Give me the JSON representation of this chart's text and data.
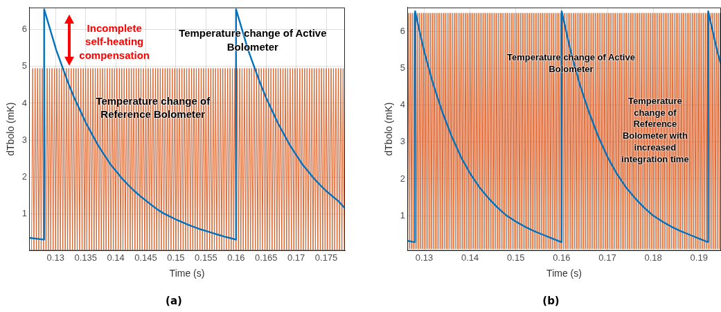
{
  "chart_data": [
    {
      "type": "line",
      "title": "(a)",
      "xlabel": "Time (s)",
      "ylabel": "dTbolo (mK)",
      "xlim": [
        0.1256,
        0.1781
      ],
      "xticks": [
        0.13,
        0.135,
        0.14,
        0.145,
        0.15,
        0.155,
        0.16,
        0.165,
        0.17,
        0.175
      ],
      "ylim": [
        0,
        6.6
      ],
      "yticks": [
        1,
        2,
        3,
        4,
        5,
        6
      ],
      "grid": true,
      "annotations": [
        "Incomplete self-heating compensation",
        "Temperature change of Active Bolometer",
        "Temperature change of Reference Bolometer"
      ],
      "series": [
        {
          "color": "#0072bd",
          "x": [
            0.1256,
            0.1281,
            0.1281,
            0.1291,
            0.1301,
            0.1311,
            0.1321,
            0.1331,
            0.1341,
            0.1351,
            0.1361,
            0.1371,
            0.1381,
            0.1391,
            0.1401,
            0.1411,
            0.1421,
            0.1431,
            0.1441,
            0.1451,
            0.1461,
            0.1471,
            0.1481,
            0.1491,
            0.1501,
            0.1511,
            0.1521,
            0.1531,
            0.1541,
            0.1551,
            0.1561,
            0.1571,
            0.1581,
            0.1591,
            0.16,
            0.16,
            0.161,
            0.162,
            0.163,
            0.164,
            0.165,
            0.166,
            0.167,
            0.168,
            0.169,
            0.17,
            0.171,
            0.172,
            0.173,
            0.174,
            0.175,
            0.176,
            0.177,
            0.1781
          ],
          "values": [
            0.35,
            0.3,
            6.55,
            6.0,
            5.45,
            5.0,
            4.55,
            4.15,
            3.8,
            3.45,
            3.15,
            2.85,
            2.6,
            2.35,
            2.15,
            1.95,
            1.78,
            1.62,
            1.48,
            1.35,
            1.22,
            1.1,
            1.0,
            0.92,
            0.84,
            0.77,
            0.7,
            0.64,
            0.58,
            0.53,
            0.48,
            0.43,
            0.38,
            0.34,
            0.3,
            6.55,
            6.0,
            5.45,
            5.0,
            4.55,
            4.15,
            3.8,
            3.45,
            3.15,
            2.85,
            2.6,
            2.35,
            2.15,
            1.95,
            1.78,
            1.62,
            1.48,
            1.35,
            1.15
          ]
        },
        {
          "color": "#d95319",
          "x": [
            0.126,
            0.1262,
            0.1264,
            0.1266,
            0.1268,
            0.127,
            0.1272,
            0.1274,
            0.1276,
            0.1278,
            0.128,
            0.1282,
            0.1284,
            0.1286,
            0.1288,
            0.129,
            0.1292,
            0.1294,
            0.1296,
            0.1298,
            0.13,
            0.1302,
            0.1304,
            0.1306,
            0.1308,
            0.131,
            0.1312,
            0.1314,
            0.1316,
            0.1318,
            0.132,
            0.1322,
            0.1324,
            0.1326,
            0.1328,
            0.133,
            0.1332,
            0.1334,
            0.1336,
            0.1338,
            0.134,
            0.1342,
            0.1344,
            0.1346,
            0.1348,
            0.135,
            0.1352,
            0.1354,
            0.1356,
            0.1358,
            0.136,
            0.1362,
            0.1364,
            0.1366,
            0.1368,
            0.137,
            0.1372,
            0.1374,
            0.1376,
            0.1378,
            0.138,
            0.1382,
            0.1384,
            0.1386,
            0.1388,
            0.139,
            0.1392,
            0.1394,
            0.1396,
            0.1398,
            0.14,
            0.1402,
            0.1404,
            0.1406,
            0.1408,
            0.141,
            0.1412,
            0.1414,
            0.1416,
            0.1418,
            0.142,
            0.1422,
            0.1424,
            0.1426,
            0.1428,
            0.143,
            0.1432,
            0.1434,
            0.1436,
            0.1438,
            0.144,
            0.1442,
            0.1444,
            0.1446,
            0.1448,
            0.145,
            0.1452,
            0.1454,
            0.1456,
            0.1458,
            0.146,
            0.1462,
            0.1464,
            0.1466,
            0.1468,
            0.147,
            0.1472,
            0.1474,
            0.1476,
            0.1478,
            0.148,
            0.1482,
            0.1484,
            0.1486,
            0.1488,
            0.149,
            0.1492,
            0.1494,
            0.1496,
            0.1498,
            0.15,
            0.1502,
            0.1504,
            0.1506,
            0.1508,
            0.151,
            0.1512,
            0.1514,
            0.1516,
            0.1518,
            0.152,
            0.1522,
            0.1524,
            0.1526,
            0.1528,
            0.153,
            0.1532,
            0.1534,
            0.1536,
            0.1538,
            0.154,
            0.1542,
            0.1544,
            0.1546,
            0.1548,
            0.155,
            0.1552,
            0.1554,
            0.1556,
            0.1558,
            0.156,
            0.1562,
            0.1564,
            0.1566,
            0.1568,
            0.157,
            0.1572,
            0.1574,
            0.1576,
            0.1578,
            0.158,
            0.1582,
            0.1584,
            0.1586,
            0.1588,
            0.159,
            0.1592,
            0.1594,
            0.1596,
            0.1598,
            0.16,
            0.1602,
            0.1604,
            0.1606,
            0.1608,
            0.161,
            0.1612,
            0.1614,
            0.1616,
            0.1618,
            0.162,
            0.1622,
            0.1624,
            0.1626,
            0.1628,
            0.163,
            0.1632,
            0.1634,
            0.1636,
            0.1638,
            0.164,
            0.1642,
            0.1644,
            0.1646,
            0.1648,
            0.165,
            0.1652,
            0.1654,
            0.1656,
            0.1658,
            0.166,
            0.1662,
            0.1664,
            0.1666,
            0.1668,
            0.167,
            0.1672,
            0.1674,
            0.1676,
            0.1678,
            0.168,
            0.1682,
            0.1684,
            0.1686,
            0.1688,
            0.169,
            0.1692,
            0.1694,
            0.1696,
            0.1698,
            0.17,
            0.1702,
            0.1704,
            0.1706,
            0.1708,
            0.171,
            0.1712,
            0.1714,
            0.1716,
            0.1718,
            0.172,
            0.1722,
            0.1724,
            0.1726,
            0.1728,
            0.173,
            0.1732,
            0.1734,
            0.1736,
            0.1738,
            0.174,
            0.1742,
            0.1744,
            0.1746,
            0.1748,
            0.175,
            0.1752,
            0.1754,
            0.1756,
            0.1758,
            0.176,
            0.1762,
            0.1764,
            0.1766,
            0.1768,
            0.177,
            0.1772,
            0.1774,
            0.1776,
            0.1778,
            0.178
          ],
          "values": [
            0.02,
            4.95,
            0.02,
            4.95,
            0.02,
            4.95,
            0.02,
            4.95,
            0.02,
            4.95,
            0.02,
            4.95,
            0.02,
            4.95,
            0.02,
            4.95,
            0.02,
            4.95,
            0.02,
            4.95,
            0.02,
            4.95,
            0.02,
            4.95,
            0.02,
            4.95,
            0.02,
            4.95,
            0.02,
            4.95,
            0.02,
            4.95,
            0.02,
            4.95,
            0.02,
            4.95,
            0.02,
            4.95,
            0.02,
            4.95,
            0.02,
            4.95,
            0.02,
            4.95,
            0.02,
            4.95,
            0.02,
            4.95,
            0.02,
            4.95,
            0.02,
            4.95,
            0.02,
            4.95,
            0.02,
            4.95,
            0.02,
            4.95,
            0.02,
            4.95,
            0.02,
            4.95,
            0.02,
            4.95,
            0.02,
            4.95,
            0.02,
            4.95,
            0.02,
            4.95,
            0.02,
            4.95,
            0.02,
            4.95,
            0.02,
            4.95,
            0.02,
            4.95,
            0.02,
            4.95,
            0.02,
            4.95,
            0.02,
            4.95,
            0.02,
            4.95,
            0.02,
            4.95,
            0.02,
            4.95,
            0.02,
            4.95,
            0.02,
            4.95,
            0.02,
            4.95,
            0.02,
            4.95,
            0.02,
            4.95,
            0.02,
            4.95,
            0.02,
            4.95,
            0.02,
            4.95,
            0.02,
            4.95,
            0.02,
            4.95,
            0.02,
            4.95,
            0.02,
            4.95,
            0.02,
            4.95,
            0.02,
            4.95,
            0.02,
            4.95,
            0.02,
            4.95,
            0.02,
            4.95,
            0.02,
            4.95,
            0.02,
            4.95,
            0.02,
            4.95,
            0.02,
            4.95,
            0.02,
            4.95,
            0.02,
            4.95,
            0.02,
            4.95,
            0.02,
            4.95,
            0.02,
            4.95,
            0.02,
            4.95,
            0.02,
            4.95,
            0.02,
            4.95,
            0.02,
            4.95,
            0.02,
            4.95,
            0.02,
            4.95,
            0.02,
            4.95,
            0.02,
            4.95,
            0.02,
            4.95,
            0.02,
            4.95,
            0.02,
            4.95,
            0.02,
            4.95,
            0.02,
            4.95,
            0.02,
            4.95,
            0.02,
            4.95,
            0.02,
            4.95,
            0.02,
            4.95,
            0.02,
            4.95,
            0.02,
            4.95,
            0.02,
            4.95,
            0.02,
            4.95,
            0.02,
            4.95,
            0.02,
            4.95,
            0.02,
            4.95,
            0.02,
            4.95,
            0.02,
            4.95,
            0.02,
            4.95,
            0.02,
            4.95,
            0.02,
            4.95,
            0.02,
            4.95,
            0.02,
            4.95,
            0.02,
            4.95,
            0.02,
            4.95,
            0.02,
            4.95,
            0.02,
            4.95,
            0.02,
            4.95,
            0.02,
            4.95,
            0.02,
            4.95,
            0.02,
            4.95,
            0.02,
            4.95,
            0.02,
            4.95,
            0.02,
            4.95,
            0.02,
            4.95,
            0.02,
            4.95,
            0.02,
            4.95,
            0.02,
            4.95,
            0.02,
            4.95,
            0.02,
            4.95,
            0.02,
            4.95,
            0.02,
            4.95,
            0.02,
            4.95,
            0.02,
            4.95,
            0.02,
            4.95,
            0.02,
            4.95,
            0.02,
            4.95,
            0.02,
            4.95,
            0.02,
            4.95,
            0.02,
            4.95,
            0.02,
            4.95,
            0.02
          ]
        }
      ]
    },
    {
      "type": "line",
      "title": "(b)",
      "xlabel": "Time (s)",
      "ylabel": "dTbolo (mK)",
      "xlim": [
        0.1263,
        0.1948
      ],
      "xticks": [
        0.13,
        0.14,
        0.15,
        0.16,
        0.17,
        0.18,
        0.19
      ],
      "ylim": [
        0.05,
        6.65
      ],
      "yticks": [
        1,
        2,
        3,
        4,
        5,
        6
      ],
      "grid": true,
      "annotations": [
        "Temperature change of Active Bolometer",
        "Temperature change of Reference Bolometer with increased integration time"
      ],
      "series": [
        {
          "color": "#0072bd",
          "x": [
            0.1263,
            0.128,
            0.128,
            0.13,
            0.132,
            0.134,
            0.136,
            0.138,
            0.14,
            0.142,
            0.144,
            0.146,
            0.148,
            0.15,
            0.152,
            0.154,
            0.156,
            0.158,
            0.16,
            0.16,
            0.162,
            0.164,
            0.166,
            0.168,
            0.17,
            0.172,
            0.174,
            0.176,
            0.178,
            0.18,
            0.182,
            0.184,
            0.186,
            0.188,
            0.19,
            0.192,
            0.192,
            0.194,
            0.1948
          ],
          "values": [
            0.32,
            0.28,
            6.55,
            5.45,
            4.55,
            3.8,
            3.15,
            2.6,
            2.15,
            1.78,
            1.48,
            1.22,
            1.0,
            0.84,
            0.7,
            0.58,
            0.48,
            0.38,
            0.28,
            6.55,
            5.45,
            4.55,
            3.8,
            3.15,
            2.6,
            2.15,
            1.78,
            1.48,
            1.22,
            1.0,
            0.84,
            0.7,
            0.58,
            0.48,
            0.38,
            0.28,
            6.55,
            5.45,
            5.1
          ]
        },
        {
          "color": "#d95319",
          "x": [
            0.1264,
            0.1266,
            0.1268,
            0.127,
            0.1272,
            0.1274,
            0.1276,
            0.1278,
            0.128,
            0.1282,
            0.1284,
            0.1286,
            0.1288,
            0.129,
            0.1292,
            0.1294,
            0.1296,
            0.1298,
            0.13,
            0.1302,
            0.1304,
            0.1306,
            0.1308,
            0.131,
            0.1312,
            0.1314,
            0.1316,
            0.1318,
            0.132,
            0.1322,
            0.1324,
            0.1326,
            0.1328,
            0.133,
            0.1332,
            0.1334,
            0.1336,
            0.1338,
            0.134,
            0.1342,
            0.1344,
            0.1346,
            0.1348,
            0.135,
            0.1352,
            0.1354,
            0.1356,
            0.1358,
            0.136,
            0.1362,
            0.1364,
            0.1366,
            0.1368,
            0.137,
            0.1372,
            0.1374,
            0.1376,
            0.1378,
            0.138,
            0.1382,
            0.1384,
            0.1386,
            0.1388,
            0.139,
            0.1392,
            0.1394,
            0.1396,
            0.1398,
            0.14,
            0.1402,
            0.1404,
            0.1406,
            0.1408,
            0.141,
            0.1412,
            0.1414,
            0.1416,
            0.1418,
            0.142,
            0.1422,
            0.1424,
            0.1426,
            0.1428,
            0.143,
            0.1432,
            0.1434,
            0.1436,
            0.1438,
            0.144,
            0.1442,
            0.1444,
            0.1446,
            0.1448,
            0.145,
            0.1452,
            0.1454,
            0.1456,
            0.1458,
            0.146,
            0.1462,
            0.1464,
            0.1466,
            0.1468,
            0.147,
            0.1472,
            0.1474,
            0.1476,
            0.1478,
            0.148,
            0.1482,
            0.1484,
            0.1486,
            0.1488,
            0.149,
            0.1492,
            0.1494,
            0.1496,
            0.1498,
            0.15,
            0.1502,
            0.1504,
            0.1506,
            0.1508,
            0.151,
            0.1512,
            0.1514,
            0.1516,
            0.1518,
            0.152,
            0.1522,
            0.1524,
            0.1526,
            0.1528,
            0.153,
            0.1532,
            0.1534,
            0.1536,
            0.1538,
            0.154,
            0.1542,
            0.1544,
            0.1546,
            0.1548,
            0.155,
            0.1552,
            0.1554,
            0.1556,
            0.1558,
            0.156,
            0.1562,
            0.1564,
            0.1566,
            0.1568,
            0.157,
            0.1572,
            0.1574,
            0.1576,
            0.1578,
            0.158,
            0.1582,
            0.1584,
            0.1586,
            0.1588,
            0.159,
            0.1592,
            0.1594,
            0.1596,
            0.1598,
            0.16,
            0.1602,
            0.1604,
            0.1606,
            0.1608,
            0.161,
            0.1612,
            0.1614,
            0.1616,
            0.1618,
            0.162,
            0.1622,
            0.1624,
            0.1626,
            0.1628,
            0.163,
            0.1632,
            0.1634,
            0.1636,
            0.1638,
            0.164,
            0.1642,
            0.1644,
            0.1646,
            0.1648,
            0.165,
            0.1652,
            0.1654,
            0.1656,
            0.1658,
            0.166,
            0.1662,
            0.1664,
            0.1666,
            0.1668,
            0.167,
            0.1672,
            0.1674,
            0.1676,
            0.1678,
            0.168,
            0.1682,
            0.1684,
            0.1686,
            0.1688,
            0.169,
            0.1692,
            0.1694,
            0.1696,
            0.1698,
            0.17,
            0.1702,
            0.1704,
            0.1706,
            0.1708,
            0.171,
            0.1712,
            0.1714,
            0.1716,
            0.1718,
            0.172,
            0.1722,
            0.1724,
            0.1726,
            0.1728,
            0.173,
            0.1732,
            0.1734,
            0.1736,
            0.1738,
            0.174,
            0.1742,
            0.1744,
            0.1746,
            0.1748,
            0.175,
            0.1752,
            0.1754,
            0.1756,
            0.1758,
            0.176,
            0.1762,
            0.1764,
            0.1766,
            0.1768,
            0.177,
            0.1772,
            0.1774,
            0.1776,
            0.1778,
            0.178,
            0.1782,
            0.1784,
            0.1786,
            0.1788,
            0.179,
            0.1792,
            0.1794,
            0.1796,
            0.1798,
            0.18,
            0.1802,
            0.1804,
            0.1806,
            0.1808,
            0.181,
            0.1812,
            0.1814,
            0.1816,
            0.1818,
            0.182,
            0.1822,
            0.1824,
            0.1826,
            0.1828,
            0.183,
            0.1832,
            0.1834,
            0.1836,
            0.1838,
            0.184,
            0.1842,
            0.1844,
            0.1846,
            0.1848,
            0.185,
            0.1852,
            0.1854,
            0.1856,
            0.1858,
            0.186,
            0.1862,
            0.1864,
            0.1866,
            0.1868,
            0.187,
            0.1872,
            0.1874,
            0.1876,
            0.1878,
            0.188,
            0.1882,
            0.1884,
            0.1886,
            0.1888,
            0.189,
            0.1892,
            0.1894,
            0.1896,
            0.1898,
            0.19,
            0.1902,
            0.1904,
            0.1906,
            0.1908,
            0.191,
            0.1912,
            0.1914,
            0.1916,
            0.1918,
            0.192,
            0.1922,
            0.1924,
            0.1926,
            0.1928,
            0.193,
            0.1932,
            0.1934,
            0.1936,
            0.1938,
            0.194,
            0.1942,
            0.1944,
            0.1946,
            0.1948
          ],
          "values": [
            0.1,
            6.5,
            0.1,
            6.5,
            0.1,
            6.5,
            0.1,
            6.5,
            0.1,
            6.5,
            0.1,
            6.5,
            0.1,
            6.5,
            0.1,
            6.5,
            0.1,
            6.5,
            0.1,
            6.5,
            0.1,
            6.5,
            0.1,
            6.5,
            0.1,
            6.5,
            0.1,
            6.5,
            0.1,
            6.5,
            0.1,
            6.5,
            0.1,
            6.5,
            0.1,
            6.5,
            0.1,
            6.5,
            0.1,
            6.5,
            0.1,
            6.5,
            0.1,
            6.5,
            0.1,
            6.5,
            0.1,
            6.5,
            0.1,
            6.5,
            0.1,
            6.5,
            0.1,
            6.5,
            0.1,
            6.5,
            0.1,
            6.5,
            0.1,
            6.5,
            0.1,
            6.5,
            0.1,
            6.5,
            0.1,
            6.5,
            0.1,
            6.5,
            0.1,
            6.5,
            0.1,
            6.5,
            0.1,
            6.5,
            0.1,
            6.5,
            0.1,
            6.5,
            0.1,
            6.5,
            0.1,
            6.5,
            0.1,
            6.5,
            0.1,
            6.5,
            0.1,
            6.5,
            0.1,
            6.5,
            0.1,
            6.5,
            0.1,
            6.5,
            0.1,
            6.5,
            0.1,
            6.5,
            0.1,
            6.5,
            0.1,
            6.5,
            0.1,
            6.5,
            0.1,
            6.5,
            0.1,
            6.5,
            0.1,
            6.5,
            0.1,
            6.5,
            0.1,
            6.5,
            0.1,
            6.5,
            0.1,
            6.5,
            0.1,
            6.5,
            0.1,
            6.5,
            0.1,
            6.5,
            0.1,
            6.5,
            0.1,
            6.5,
            0.1,
            6.5,
            0.1,
            6.5,
            0.1,
            6.5,
            0.1,
            6.5,
            0.1,
            6.5,
            0.1,
            6.5,
            0.1,
            6.5,
            0.1,
            6.5,
            0.1,
            6.5,
            0.1,
            6.5,
            0.1,
            6.5,
            0.1,
            6.5,
            0.1,
            6.5,
            0.1,
            6.5,
            0.1,
            6.5,
            0.1,
            6.5,
            0.1,
            6.5,
            0.1,
            6.5,
            0.1,
            6.5,
            0.1,
            6.5,
            0.1,
            6.5,
            0.1,
            6.5,
            0.1,
            6.5,
            0.1,
            6.5,
            0.1,
            6.5,
            0.1,
            6.5,
            0.1,
            6.5,
            0.1,
            6.5,
            0.1,
            6.5,
            0.1,
            6.5,
            0.1,
            6.5,
            0.1,
            6.5,
            0.1,
            6.5,
            0.1,
            6.5,
            0.1,
            6.5,
            0.1,
            6.5,
            0.1,
            6.5,
            0.1,
            6.5,
            0.1,
            6.5,
            0.1,
            6.5,
            0.1,
            6.5,
            0.1,
            6.5,
            0.1,
            6.5,
            0.1,
            6.5,
            0.1,
            6.5,
            0.1,
            6.5,
            0.1,
            6.5,
            0.1,
            6.5,
            0.1,
            6.5,
            0.1,
            6.5,
            0.1,
            6.5,
            0.1,
            6.5,
            0.1,
            6.5,
            0.1,
            6.5,
            0.1,
            6.5,
            0.1,
            6.5,
            0.1,
            6.5,
            0.1,
            6.5,
            0.1,
            6.5,
            0.1,
            6.5,
            0.1,
            6.5,
            0.1,
            6.5,
            0.1,
            6.5,
            0.1,
            6.5,
            0.1,
            6.5,
            0.1,
            6.5,
            0.1,
            6.5,
            0.1,
            6.5,
            0.1,
            6.5,
            0.1,
            6.5,
            0.1,
            6.5,
            0.1,
            6.5,
            0.1,
            6.5,
            0.1,
            6.5,
            0.1,
            6.5,
            0.1,
            6.5,
            0.1,
            6.5,
            0.1,
            6.5,
            0.1,
            6.5,
            0.1,
            6.5,
            0.1,
            6.5,
            0.1,
            6.5,
            0.1,
            6.5,
            0.1,
            6.5,
            0.1,
            6.5,
            0.1,
            6.5,
            0.1,
            6.5,
            0.1,
            6.5,
            0.1,
            6.5,
            0.1,
            6.5,
            0.1,
            6.5,
            0.1,
            6.5,
            0.1,
            6.5,
            0.1,
            6.5,
            0.1,
            6.5,
            0.1,
            6.5,
            0.1,
            6.5,
            0.1,
            6.5,
            0.1,
            6.5,
            0.1,
            6.5,
            0.1,
            6.5,
            0.1,
            6.5,
            0.1,
            6.5,
            0.1,
            6.5,
            0.1,
            6.5,
            0.1,
            6.5,
            0.1,
            6.5,
            0.1
          ]
        }
      ]
    }
  ]
}
